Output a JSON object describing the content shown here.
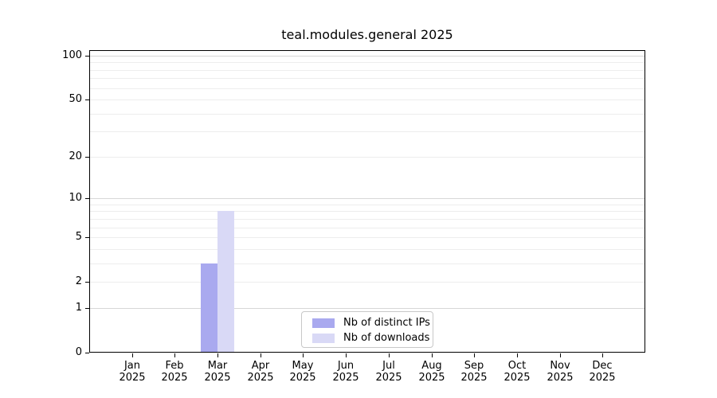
{
  "chart_data": {
    "type": "bar",
    "title": "teal.modules.general 2025",
    "categories": [
      "Jan",
      "Feb",
      "Mar",
      "Apr",
      "May",
      "Jun",
      "Jul",
      "Aug",
      "Sep",
      "Oct",
      "Nov",
      "Dec"
    ],
    "x_axis": {
      "year_label": "2025"
    },
    "y_axis": {
      "scale": "log1p",
      "ticks": [
        0,
        1,
        2,
        5,
        10,
        20,
        50,
        100
      ],
      "gridlines_minor": [
        2,
        3,
        4,
        5,
        6,
        7,
        8,
        9,
        20,
        30,
        40,
        50,
        60,
        70,
        80,
        90
      ],
      "gridlines_major": [
        1,
        10,
        100
      ],
      "top_value": 109,
      "ylim": [
        0,
        109
      ]
    },
    "series": [
      {
        "name": "Nb of distinct IPs",
        "color": "#a9a9ef",
        "values": [
          0,
          0,
          3,
          0,
          0,
          0,
          0,
          0,
          0,
          0,
          0,
          0
        ]
      },
      {
        "name": "Nb of downloads",
        "color": "#d9d9f6",
        "values": [
          0,
          0,
          8,
          0,
          0,
          0,
          0,
          0,
          0,
          0,
          0,
          0
        ]
      }
    ],
    "legend": {
      "position": "inside-bottom-center"
    },
    "grid": true
  },
  "colors": {
    "axis": "#000000",
    "text": "#000000",
    "grid_minor": "#ededed",
    "grid_major": "#d7d7d7",
    "background": "#ffffff",
    "legend_border": "#c8c8c8"
  }
}
